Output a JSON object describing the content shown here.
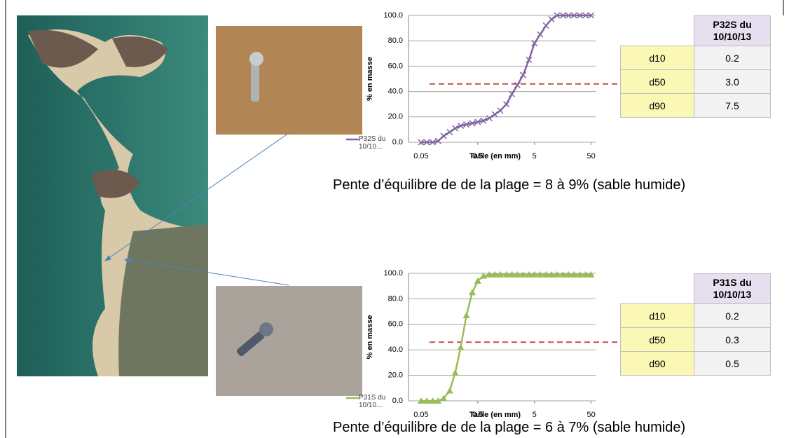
{
  "chart_data": [
    {
      "type": "line",
      "y_label": "% en masse",
      "x_label": "Taille (en mm)",
      "x_log": true,
      "xlim": [
        0.03,
        60
      ],
      "xticks": [
        0.05,
        0.5,
        5,
        50
      ],
      "ylim": [
        0,
        100
      ],
      "yticks": [
        {
          "value": 0,
          "label": "0.0"
        },
        {
          "value": 20,
          "label": "20.0"
        },
        {
          "value": 40,
          "label": "40.0"
        },
        {
          "value": 60,
          "label": "60.0"
        },
        {
          "value": 80,
          "label": "80.0"
        },
        {
          "value": 100,
          "label": "100.0"
        }
      ],
      "grid": true,
      "reference_line": 46,
      "reference_color": "#c0504d",
      "legend": "bottom-left",
      "x": [
        0.05,
        0.063,
        0.08,
        0.1,
        0.125,
        0.16,
        0.2,
        0.25,
        0.315,
        0.4,
        0.5,
        0.63,
        0.8,
        1,
        1.25,
        1.6,
        2,
        2.5,
        3.15,
        4,
        5,
        6.3,
        8,
        10,
        12.5,
        16,
        20,
        25,
        31.5,
        40,
        50
      ],
      "series": [
        {
          "name": "P32S du 10/10...",
          "color": "#8064a2",
          "marker": "x",
          "values": [
            0,
            0,
            0,
            1,
            5,
            8,
            11,
            13,
            14,
            15,
            16,
            17,
            19,
            22,
            25,
            30,
            38,
            45,
            53,
            65,
            78,
            85,
            92,
            97,
            100,
            100,
            100,
            100,
            100,
            100,
            100
          ]
        }
      ]
    },
    {
      "type": "line",
      "y_label": "% en masse",
      "x_label": "Taille (en mm)",
      "x_log": true,
      "xlim": [
        0.03,
        60
      ],
      "xticks": [
        0.05,
        0.5,
        5,
        50
      ],
      "ylim": [
        0,
        100
      ],
      "yticks": [
        {
          "value": 0,
          "label": "0.0"
        },
        {
          "value": 20,
          "label": "20.0"
        },
        {
          "value": 40,
          "label": "40.0"
        },
        {
          "value": 60,
          "label": "60.0"
        },
        {
          "value": 80,
          "label": "80.0"
        },
        {
          "value": 100,
          "label": "100.0"
        }
      ],
      "grid": true,
      "reference_line": 46,
      "reference_color": "#c0504d",
      "legend": "bottom-left",
      "x": [
        0.05,
        0.063,
        0.08,
        0.1,
        0.125,
        0.16,
        0.2,
        0.25,
        0.315,
        0.4,
        0.5,
        0.63,
        0.8,
        1,
        1.25,
        1.6,
        2,
        2.5,
        3.15,
        4,
        5,
        6.3,
        8,
        10,
        12.5,
        16,
        20,
        25,
        31.5,
        40,
        50
      ],
      "series": [
        {
          "name": "P31S du 10/10...",
          "color": "#9bbb59",
          "marker": "triangle",
          "values": [
            0,
            0,
            0,
            0,
            2,
            8,
            22,
            42,
            67,
            85,
            94,
            98,
            99,
            99,
            99,
            99,
            99,
            99,
            99,
            99,
            99,
            99,
            99,
            99,
            99,
            99,
            99,
            99,
            99,
            99,
            99
          ]
        }
      ]
    }
  ],
  "tables": [
    {
      "title": "P32S du 10/10/13",
      "rows": [
        [
          "d10",
          "0.2"
        ],
        [
          "d50",
          "3.0"
        ],
        [
          "d90",
          "7.5"
        ]
      ]
    },
    {
      "title": "P31S du 10/10/13",
      "rows": [
        [
          "d10",
          "0.2"
        ],
        [
          "d50",
          "0.3"
        ],
        [
          "d90",
          "0.5"
        ]
      ]
    }
  ],
  "captions": [
    "Pente d’équilibre de de la plage = 8 à 9% (sable humide)",
    "Pente d’équilibre de de la plage = 6 à 7% (sable humide)"
  ]
}
